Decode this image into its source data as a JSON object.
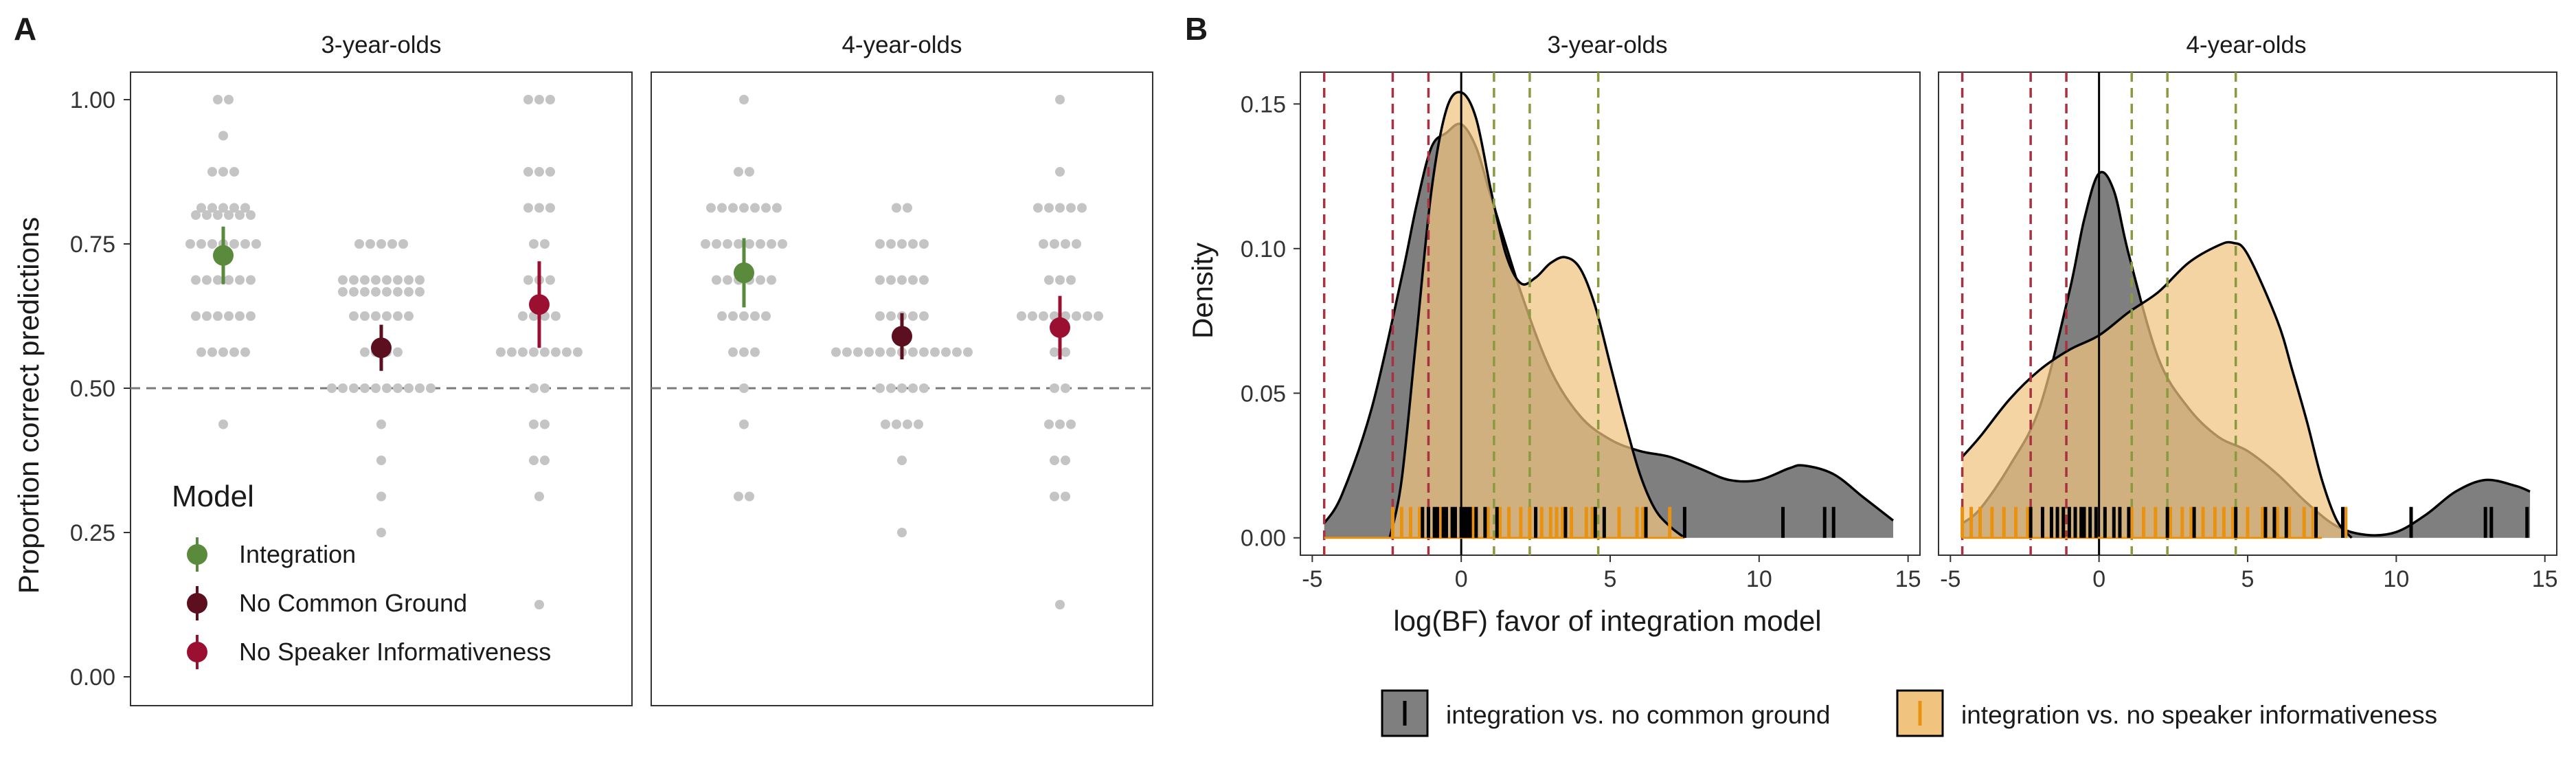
{
  "panel_labels": {
    "a": "A",
    "b": "B"
  },
  "legends": {
    "model_title": "Model",
    "model_items": [
      {
        "label": "Integration",
        "color": "#5a8a3c"
      },
      {
        "label": "No Common Ground",
        "color": "#5c0f1e"
      },
      {
        "label": "No Speaker Informativeness",
        "color": "#9b1030"
      }
    ],
    "comparison_items": [
      {
        "label": "integration vs. no common ground",
        "color": "#7f7f7f",
        "tick_color": "#000000"
      },
      {
        "label": "integration vs. no speaker informativeness",
        "color": "#f0c47e",
        "tick_color": "#e8920f"
      }
    ]
  },
  "chart_data": [
    {
      "type": "scatter",
      "panel": "A",
      "facets": [
        "3-year-olds",
        "4-year-olds"
      ],
      "ylabel": "Proportion correct predictions",
      "xlabel": "",
      "ylim": [
        0,
        1.05
      ],
      "yticks": [
        "0.00",
        "0.25",
        "0.50",
        "0.75",
        "1.00"
      ],
      "reference_line": 0.5,
      "categories": [
        "Integration",
        "No Common Ground",
        "No Speaker Informativeness"
      ],
      "summary": [
        {
          "facet": "3-year-olds",
          "model": "Integration",
          "mean": 0.73,
          "ci": [
            0.68,
            0.78
          ]
        },
        {
          "facet": "3-year-olds",
          "model": "No Common Ground",
          "mean": 0.57,
          "ci": [
            0.53,
            0.61
          ]
        },
        {
          "facet": "3-year-olds",
          "model": "No Speaker Informativeness",
          "mean": 0.645,
          "ci": [
            0.57,
            0.72
          ]
        },
        {
          "facet": "4-year-olds",
          "model": "Integration",
          "mean": 0.7,
          "ci": [
            0.64,
            0.76
          ]
        },
        {
          "facet": "4-year-olds",
          "model": "No Common Ground",
          "mean": 0.59,
          "ci": [
            0.55,
            0.63
          ]
        },
        {
          "facet": "4-year-olds",
          "model": "No Speaker Informativeness",
          "mean": 0.605,
          "ci": [
            0.55,
            0.66
          ]
        }
      ],
      "individual_points": [
        {
          "facet": "3-year-olds",
          "model": "Integration",
          "values": [
            [
              1.0,
              2
            ],
            [
              0.9375,
              1
            ],
            [
              0.875,
              3
            ],
            [
              0.8125,
              5
            ],
            [
              0.8,
              6
            ],
            [
              0.75,
              7
            ],
            [
              0.6875,
              6
            ],
            [
              0.625,
              6
            ],
            [
              0.5625,
              5
            ],
            [
              0.4375,
              1
            ]
          ]
        },
        {
          "facet": "3-year-olds",
          "model": "No Common Ground",
          "values": [
            [
              0.75,
              5
            ],
            [
              0.6875,
              8
            ],
            [
              0.667,
              8
            ],
            [
              0.625,
              6
            ],
            [
              0.5625,
              4
            ],
            [
              0.5,
              10
            ],
            [
              0.4375,
              1
            ],
            [
              0.375,
              1
            ],
            [
              0.3125,
              1
            ],
            [
              0.25,
              1
            ]
          ]
        },
        {
          "facet": "3-year-olds",
          "model": "No Speaker Informativeness",
          "values": [
            [
              1.0,
              3
            ],
            [
              0.875,
              3
            ],
            [
              0.8125,
              3
            ],
            [
              0.75,
              2
            ],
            [
              0.6875,
              3
            ],
            [
              0.625,
              4
            ],
            [
              0.5625,
              8
            ],
            [
              0.5,
              2
            ],
            [
              0.4375,
              2
            ],
            [
              0.375,
              2
            ],
            [
              0.3125,
              1
            ],
            [
              0.125,
              1
            ]
          ]
        },
        {
          "facet": "4-year-olds",
          "model": "Integration",
          "values": [
            [
              1.0,
              1
            ],
            [
              0.875,
              2
            ],
            [
              0.8125,
              7
            ],
            [
              0.75,
              8
            ],
            [
              0.6875,
              6
            ],
            [
              0.625,
              5
            ],
            [
              0.5625,
              3
            ],
            [
              0.5,
              1
            ],
            [
              0.4375,
              1
            ],
            [
              0.3125,
              2
            ]
          ]
        },
        {
          "facet": "4-year-olds",
          "model": "No Common Ground",
          "values": [
            [
              0.8125,
              2
            ],
            [
              0.75,
              5
            ],
            [
              0.6875,
              5
            ],
            [
              0.625,
              5
            ],
            [
              0.5625,
              13
            ],
            [
              0.5,
              5
            ],
            [
              0.4375,
              4
            ],
            [
              0.375,
              1
            ],
            [
              0.25,
              1
            ]
          ]
        },
        {
          "facet": "4-year-olds",
          "model": "No Speaker Informativeness",
          "values": [
            [
              1.0,
              1
            ],
            [
              0.875,
              1
            ],
            [
              0.8125,
              5
            ],
            [
              0.75,
              4
            ],
            [
              0.6875,
              3
            ],
            [
              0.625,
              8
            ],
            [
              0.5625,
              2
            ],
            [
              0.5,
              2
            ],
            [
              0.4375,
              3
            ],
            [
              0.375,
              2
            ],
            [
              0.3125,
              2
            ],
            [
              0.125,
              1
            ]
          ]
        }
      ]
    },
    {
      "type": "area",
      "panel": "B",
      "facets": [
        "3-year-olds",
        "4-year-olds"
      ],
      "xlabel": "log(BF) favor of integration model",
      "ylabel": "Density",
      "xlim": [
        -5.4,
        15.4
      ],
      "ylim": [
        -0.006,
        0.161
      ],
      "xticks": [
        "-5",
        "0",
        "5",
        "10",
        "15"
      ],
      "yticks": [
        "0.00",
        "0.05",
        "0.10",
        "0.15"
      ],
      "vertical_lines": {
        "solid": [
          0
        ],
        "dashed_red": [
          -4.6,
          -2.3,
          -1.1
        ],
        "dashed_green": [
          1.1,
          2.3,
          4.6
        ]
      },
      "series": [
        {
          "name": "integration vs. no common ground",
          "densities": {
            "3-year-olds": [
              [
                -4.6,
                0.005
              ],
              [
                -4,
                0.015
              ],
              [
                -3,
                0.045
              ],
              [
                -2,
                0.09
              ],
              [
                -1.5,
                0.115
              ],
              [
                -1,
                0.135
              ],
              [
                -0.5,
                0.14
              ],
              [
                0,
                0.143
              ],
              [
                0.5,
                0.135
              ],
              [
                1,
                0.118
              ],
              [
                2,
                0.085
              ],
              [
                3,
                0.058
              ],
              [
                4,
                0.042
              ],
              [
                5,
                0.034
              ],
              [
                6,
                0.03
              ],
              [
                7,
                0.028
              ],
              [
                8,
                0.024
              ],
              [
                9,
                0.02
              ],
              [
                10,
                0.02
              ],
              [
                11,
                0.024
              ],
              [
                11.5,
                0.025
              ],
              [
                12.5,
                0.022
              ],
              [
                13.5,
                0.014
              ],
              [
                14.5,
                0.006
              ]
            ],
            "4-year-olds": [
              [
                -4.6,
                0.005
              ],
              [
                -4,
                0.01
              ],
              [
                -3,
                0.025
              ],
              [
                -2,
                0.045
              ],
              [
                -1,
                0.085
              ],
              [
                -0.5,
                0.11
              ],
              [
                0,
                0.126
              ],
              [
                0.5,
                0.12
              ],
              [
                1,
                0.098
              ],
              [
                2,
                0.062
              ],
              [
                3,
                0.045
              ],
              [
                4,
                0.035
              ],
              [
                5,
                0.03
              ],
              [
                6,
                0.022
              ],
              [
                7,
                0.012
              ],
              [
                8,
                0.004
              ],
              [
                9,
                0.001
              ],
              [
                10,
                0.002
              ],
              [
                11,
                0.008
              ],
              [
                12,
                0.016
              ],
              [
                13,
                0.02
              ],
              [
                14,
                0.018
              ],
              [
                14.5,
                0.016
              ]
            ]
          },
          "rug": {
            "3-year-olds": [
              -1.3,
              -1.1,
              -0.9,
              -0.8,
              -0.6,
              -0.5,
              -0.3,
              -0.2,
              0.0,
              0.1,
              0.2,
              0.3,
              0.5,
              0.8,
              1.2,
              2.5,
              3.5,
              4.5,
              4.8,
              6.2,
              7.5,
              10.8,
              12.2,
              12.5
            ],
            "4-year-olds": [
              -2.3,
              -1.9,
              -1.6,
              -1.4,
              -1.2,
              -1.0,
              -0.8,
              -0.6,
              -0.5,
              -0.3,
              -0.1,
              0.2,
              0.5,
              0.7,
              1.0,
              2.3,
              3.2,
              4.6,
              5.6,
              5.9,
              6.3,
              7.3,
              8.2,
              10.5,
              13.0,
              13.2,
              14.4
            ]
          }
        },
        {
          "name": "integration vs. no speaker informativeness",
          "densities": {
            "3-year-olds": [
              [
                -2.4,
                0.0
              ],
              [
                -2,
                0.02
              ],
              [
                -1.5,
                0.07
              ],
              [
                -1,
                0.12
              ],
              [
                -0.5,
                0.148
              ],
              [
                0,
                0.154
              ],
              [
                0.5,
                0.145
              ],
              [
                1,
                0.12
              ],
              [
                1.5,
                0.098
              ],
              [
                2,
                0.088
              ],
              [
                2.5,
                0.09
              ],
              [
                3,
                0.095
              ],
              [
                3.5,
                0.097
              ],
              [
                4,
                0.093
              ],
              [
                4.5,
                0.08
              ],
              [
                5,
                0.06
              ],
              [
                5.5,
                0.04
              ],
              [
                6,
                0.022
              ],
              [
                6.5,
                0.01
              ],
              [
                7,
                0.004
              ],
              [
                7.5,
                0.0
              ]
            ],
            "4-year-olds": [
              [
                -4.6,
                0.028
              ],
              [
                -4,
                0.035
              ],
              [
                -3,
                0.048
              ],
              [
                -2,
                0.058
              ],
              [
                -1,
                0.065
              ],
              [
                0,
                0.07
              ],
              [
                1,
                0.078
              ],
              [
                2,
                0.085
              ],
              [
                3,
                0.095
              ],
              [
                4,
                0.101
              ],
              [
                4.5,
                0.102
              ],
              [
                5,
                0.098
              ],
              [
                6,
                0.075
              ],
              [
                6.5,
                0.058
              ],
              [
                7,
                0.04
              ],
              [
                7.5,
                0.02
              ],
              [
                8,
                0.006
              ],
              [
                8.5,
                0.0
              ]
            ]
          },
          "rug": {
            "3-year-olds": [
              -2.3,
              -2.0,
              -1.7,
              -1.4,
              -1.1,
              -0.7,
              -0.3,
              0.4,
              0.9,
              1.3,
              1.6,
              2.0,
              2.3,
              2.7,
              3.0,
              3.2,
              3.4,
              3.7,
              4.2,
              4.4,
              5.3,
              5.9,
              6.1,
              7.0
            ],
            "4-year-olds": [
              -4.6,
              -4.3,
              -4.0,
              -3.6,
              -3.2,
              -2.8,
              -2.4,
              1.1,
              1.5,
              1.9,
              2.4,
              2.8,
              3.1,
              3.5,
              3.9,
              4.2,
              4.5,
              5.0,
              5.5,
              6.0,
              6.4,
              6.9,
              7.2,
              8.3
            ]
          }
        }
      ]
    }
  ]
}
